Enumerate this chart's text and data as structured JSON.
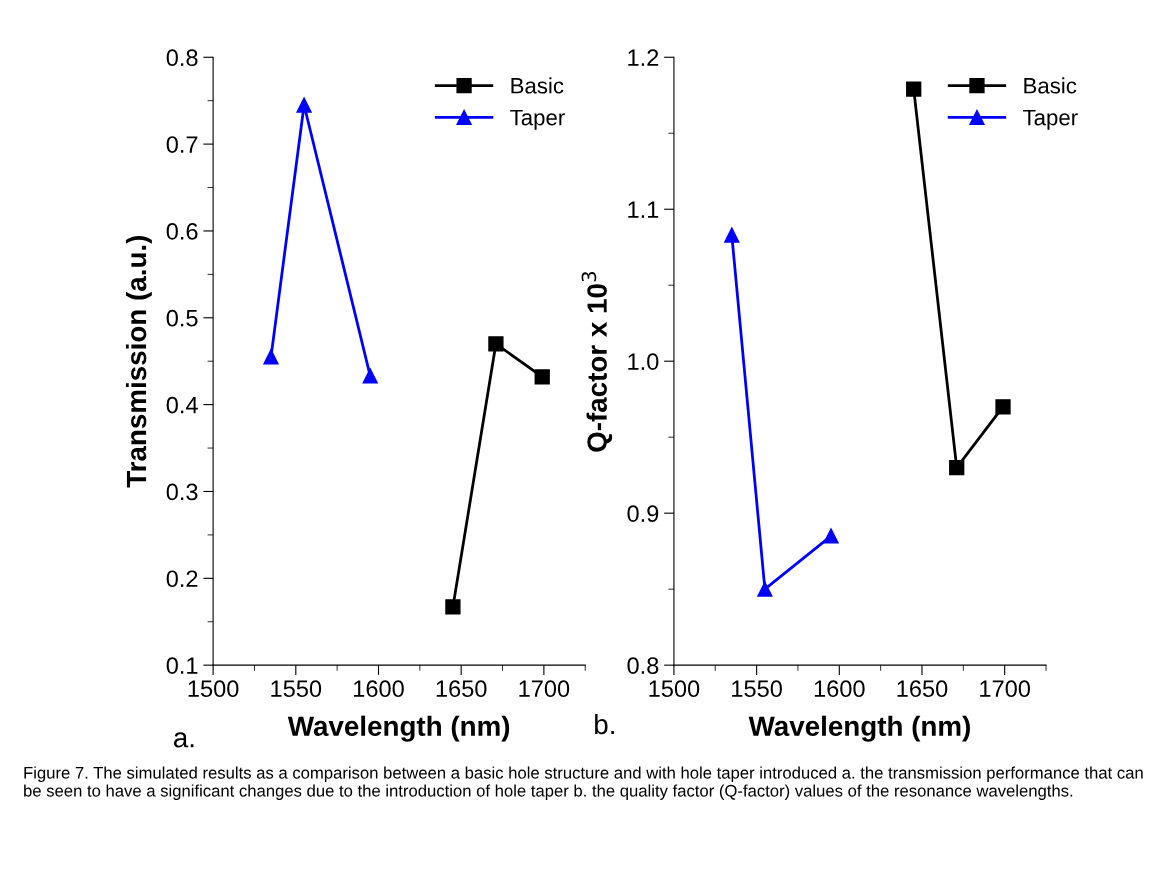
{
  "chart_data": [
    {
      "type": "line",
      "xlabel": "Wavelength (nm)",
      "ylabel": "Transmission (a.u.)",
      "xlim": [
        1500,
        1725
      ],
      "xticks": [
        1500,
        1550,
        1600,
        1650,
        1700
      ],
      "ylim": [
        0.1,
        0.8
      ],
      "yticks": [
        0.1,
        0.2,
        0.3,
        0.4,
        0.5,
        0.6,
        0.7,
        0.8
      ],
      "grid": false,
      "legend": "top right",
      "series": [
        {
          "name": "Basic",
          "color": "#000000",
          "marker": "square",
          "x": [
            1645,
            1671,
            1699
          ],
          "values": [
            0.167,
            0.47,
            0.432
          ]
        },
        {
          "name": "Taper",
          "color": "#0000ff",
          "marker": "triangle",
          "x": [
            1535,
            1555,
            1595
          ],
          "values": [
            0.455,
            0.745,
            0.433
          ]
        }
      ],
      "annotations": [
        "a.",
        "Figure 7. The simulated results as a comparison between a basic hole structure and with hole taper introduced a. the transmission performance that can be seen to have a significant changes due to the introduction of hole taper b. the quality factor (Q-factor) values of the resonance wavelengths."
      ]
    },
    {
      "type": "line",
      "xlabel": "Wavelength (nm)",
      "ylabel": "Q-factor x 10$^{3}$",
      "xlim": [
        1500,
        1725
      ],
      "xticks": [
        1500,
        1550,
        1600,
        1650,
        1700
      ],
      "ylim": [
        0.8,
        1.2
      ],
      "yticks": [
        0.8,
        0.9,
        {
          "value": 1.0,
          "label": "1.0"
        },
        1.1,
        1.2
      ],
      "grid": false,
      "legend": "top right",
      "series": [
        {
          "name": "Basic",
          "color": "#000000",
          "marker": "square",
          "x": [
            1645,
            1671,
            1699
          ],
          "values": [
            1.179,
            0.93,
            0.97
          ]
        },
        {
          "name": "Taper",
          "color": "#0000ff",
          "marker": "triangle",
          "x": [
            1535,
            1555,
            1595
          ],
          "values": [
            1.083,
            0.85,
            0.885
          ]
        }
      ],
      "annotations": [
        "b."
      ]
    }
  ]
}
